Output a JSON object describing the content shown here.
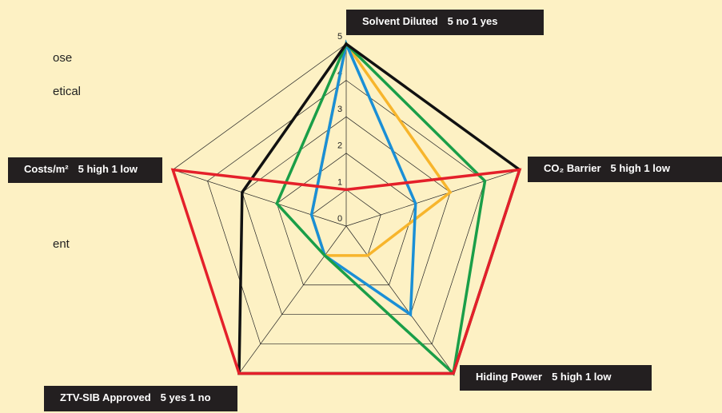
{
  "chart_data": {
    "type": "radar",
    "side_text": [
      "ose",
      "etical",
      "ent"
    ],
    "categories": [
      "Solvent Diluted",
      "CO₂ Barrier",
      "Hiding Power",
      "ZTV-SIB Approved",
      "Costs/m²"
    ],
    "scale_labels": [
      "5 no 1 yes",
      "5 high 1 low",
      "5 high 1 low",
      "5 yes 1 no",
      "5 high 1 low"
    ],
    "rlim": [
      0,
      5
    ],
    "rticks": [
      0,
      1,
      2,
      3,
      4,
      5
    ],
    "grid": true,
    "series": [
      {
        "color": "#f7b52c",
        "values": [
          5,
          3,
          1,
          1,
          1
        ]
      },
      {
        "color": "#1a8fd6",
        "values": [
          5,
          2,
          3,
          1,
          1
        ]
      },
      {
        "color": "#1a9e48",
        "values": [
          5,
          4,
          5,
          1,
          2
        ]
      },
      {
        "color": "#111111",
        "values": [
          5,
          5,
          5,
          5,
          3
        ]
      },
      {
        "color": "#e4202a",
        "values": [
          1,
          5,
          5,
          5,
          5
        ]
      }
    ]
  }
}
